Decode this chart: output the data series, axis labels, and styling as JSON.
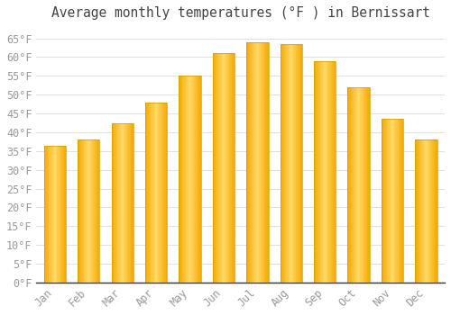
{
  "title": "Average monthly temperatures (°F ) in Bernissart",
  "months": [
    "Jan",
    "Feb",
    "Mar",
    "Apr",
    "May",
    "Jun",
    "Jul",
    "Aug",
    "Sep",
    "Oct",
    "Nov",
    "Dec"
  ],
  "values": [
    36.5,
    38.0,
    42.5,
    48.0,
    55.0,
    61.0,
    64.0,
    63.5,
    59.0,
    52.0,
    43.5,
    38.0
  ],
  "bar_color_center": "#FFD966",
  "bar_color_edge": "#F5A800",
  "bar_border_color": "#C8A000",
  "yticks": [
    0,
    5,
    10,
    15,
    20,
    25,
    30,
    35,
    40,
    45,
    50,
    55,
    60,
    65
  ],
  "ylim": [
    0,
    68
  ],
  "background_color": "#ffffff",
  "grid_color": "#e0e0e0",
  "font_family": "monospace",
  "title_fontsize": 10.5,
  "tick_fontsize": 8.5,
  "tick_color": "#999999"
}
